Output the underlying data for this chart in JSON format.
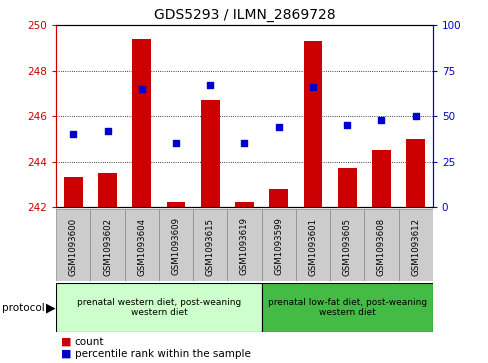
{
  "title": "GDS5293 / ILMN_2869728",
  "samples": [
    "GSM1093600",
    "GSM1093602",
    "GSM1093604",
    "GSM1093609",
    "GSM1093615",
    "GSM1093619",
    "GSM1093599",
    "GSM1093601",
    "GSM1093605",
    "GSM1093608",
    "GSM1093612"
  ],
  "counts": [
    243.3,
    243.5,
    249.4,
    242.2,
    246.7,
    242.2,
    242.8,
    249.3,
    243.7,
    244.5,
    245.0
  ],
  "percentiles": [
    40,
    42,
    65,
    35,
    67,
    35,
    44,
    66,
    45,
    48,
    50
  ],
  "ylim_left": [
    242,
    250
  ],
  "ylim_right": [
    0,
    100
  ],
  "yticks_left": [
    242,
    244,
    246,
    248,
    250
  ],
  "yticks_right": [
    0,
    25,
    50,
    75,
    100
  ],
  "left_color": "#cc0000",
  "right_color": "#0000cc",
  "bar_color": "#cc0000",
  "dot_color": "#0000cc",
  "groups": [
    {
      "label": "prenatal western diet, post-weaning\nwestern diet",
      "indices": [
        0,
        1,
        2,
        3,
        4,
        5
      ],
      "color": "#ccffcc"
    },
    {
      "label": "prenatal low-fat diet, post-weaning\nwestern diet",
      "indices": [
        6,
        7,
        8,
        9,
        10
      ],
      "color": "#44bb44"
    }
  ],
  "protocol_label": "protocol",
  "legend_count": "count",
  "legend_percentile": "percentile rank within the sample",
  "tick_bg": "#cccccc"
}
